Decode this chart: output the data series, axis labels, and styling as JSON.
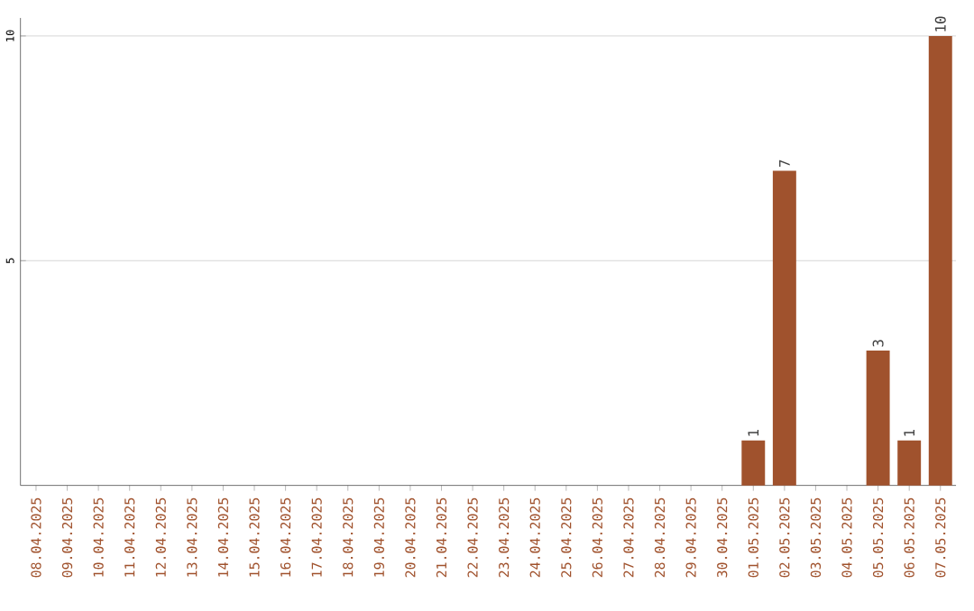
{
  "chart_data": {
    "type": "bar",
    "categories": [
      "08.04.2025",
      "09.04.2025",
      "10.04.2025",
      "11.04.2025",
      "12.04.2025",
      "13.04.2025",
      "14.04.2025",
      "15.04.2025",
      "16.04.2025",
      "17.04.2025",
      "18.04.2025",
      "19.04.2025",
      "20.04.2025",
      "21.04.2025",
      "22.04.2025",
      "23.04.2025",
      "24.04.2025",
      "25.04.2025",
      "26.04.2025",
      "27.04.2025",
      "28.04.2025",
      "29.04.2025",
      "30.04.2025",
      "01.05.2025",
      "02.05.2025",
      "03.05.2025",
      "04.05.2025",
      "05.05.2025",
      "06.05.2025",
      "07.05.2025"
    ],
    "values": [
      0,
      0,
      0,
      0,
      0,
      0,
      0,
      0,
      0,
      0,
      0,
      0,
      0,
      0,
      0,
      0,
      0,
      0,
      0,
      0,
      0,
      0,
      0,
      1,
      7,
      0,
      0,
      3,
      1,
      10
    ],
    "value_labels": [
      null,
      null,
      null,
      null,
      null,
      null,
      null,
      null,
      null,
      null,
      null,
      null,
      null,
      null,
      null,
      null,
      null,
      null,
      null,
      null,
      null,
      null,
      null,
      "1",
      "7",
      null,
      null,
      "3",
      "1",
      "10"
    ],
    "color": "#a0522d",
    "ylim": [
      0,
      10.4
    ],
    "yticks": [
      5,
      10
    ],
    "grid": "y"
  }
}
